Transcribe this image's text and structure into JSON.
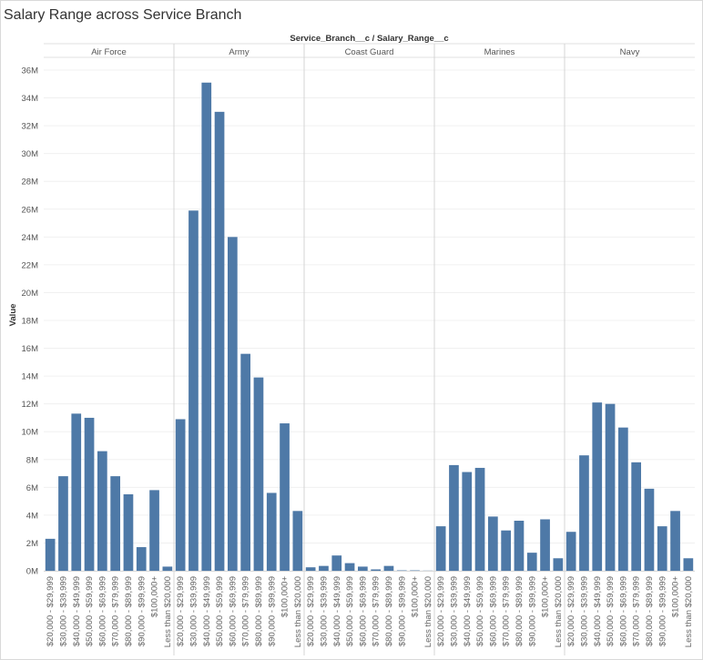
{
  "title": "Salary Range across Service Branch",
  "chart_data": {
    "type": "bar",
    "header": "Service_Branch__c / Salary_Range__c",
    "ylabel": "Value",
    "ylim": [
      0,
      37000000
    ],
    "y_ticks": [
      0,
      2000000,
      4000000,
      6000000,
      8000000,
      10000000,
      12000000,
      14000000,
      16000000,
      18000000,
      20000000,
      22000000,
      24000000,
      26000000,
      28000000,
      30000000,
      32000000,
      34000000,
      36000000
    ],
    "y_tick_labels": [
      "0M",
      "2M",
      "4M",
      "6M",
      "8M",
      "10M",
      "12M",
      "14M",
      "16M",
      "18M",
      "20M",
      "22M",
      "24M",
      "26M",
      "28M",
      "30M",
      "32M",
      "34M",
      "36M"
    ],
    "grid": true,
    "bar_color": "#4e79a7",
    "panels": [
      {
        "name": "Air Force",
        "categories": [
          "$20,000 - $29,999",
          "$30,000 - $39,999",
          "$40,000 - $49,999",
          "$50,000 - $59,999",
          "$60,000 - $69,999",
          "$70,000 - $79,999",
          "$80,000 - $89,999",
          "$90,000 - $99,999",
          "$100,000+",
          "Less than $20,000"
        ],
        "values": [
          2300000,
          6800000,
          11300000,
          11000000,
          8600000,
          6800000,
          5500000,
          1700000,
          5800000,
          300000
        ]
      },
      {
        "name": "Army",
        "categories": [
          "$20,000 - $29,999",
          "$30,000 - $39,999",
          "$40,000 - $49,999",
          "$50,000 - $59,999",
          "$60,000 - $69,999",
          "$70,000 - $79,999",
          "$80,000 - $89,999",
          "$90,000 - $99,999",
          "$100,000+",
          "Less than $20,000"
        ],
        "values": [
          10900000,
          25900000,
          35100000,
          33000000,
          24000000,
          15600000,
          13900000,
          5600000,
          10600000,
          4300000
        ]
      },
      {
        "name": "Coast Guard",
        "categories": [
          "$20,000 - $29,999",
          "$30,000 - $39,999",
          "$40,000 - $49,999",
          "$50,000 - $59,999",
          "$60,000 - $69,999",
          "$70,000 - $79,999",
          "$80,000 - $89,999",
          "$90,000 - $99,999",
          "$100,000+",
          "Less than $20,000"
        ],
        "values": [
          250000,
          350000,
          1100000,
          550000,
          300000,
          100000,
          350000,
          30000,
          30000,
          10000
        ]
      },
      {
        "name": "Marines",
        "categories": [
          "$20,000 - $29,999",
          "$30,000 - $39,999",
          "$40,000 - $49,999",
          "$50,000 - $59,999",
          "$60,000 - $69,999",
          "$70,000 - $79,999",
          "$80,000 - $89,999",
          "$90,000 - $99,999",
          "$100,000+",
          "Less than $20,000"
        ],
        "values": [
          3200000,
          7600000,
          7100000,
          7400000,
          3900000,
          2900000,
          3600000,
          1300000,
          3700000,
          900000
        ]
      },
      {
        "name": "Navy",
        "categories": [
          "$20,000 - $29,999",
          "$30,000 - $39,999",
          "$40,000 - $49,999",
          "$50,000 - $59,999",
          "$60,000 - $69,999",
          "$70,000 - $79,999",
          "$80,000 - $89,999",
          "$90,000 - $99,999",
          "$100,000+",
          "Less than $20,000"
        ],
        "values": [
          2800000,
          8300000,
          12100000,
          12000000,
          10300000,
          7800000,
          5900000,
          3200000,
          4300000,
          900000
        ]
      }
    ]
  }
}
